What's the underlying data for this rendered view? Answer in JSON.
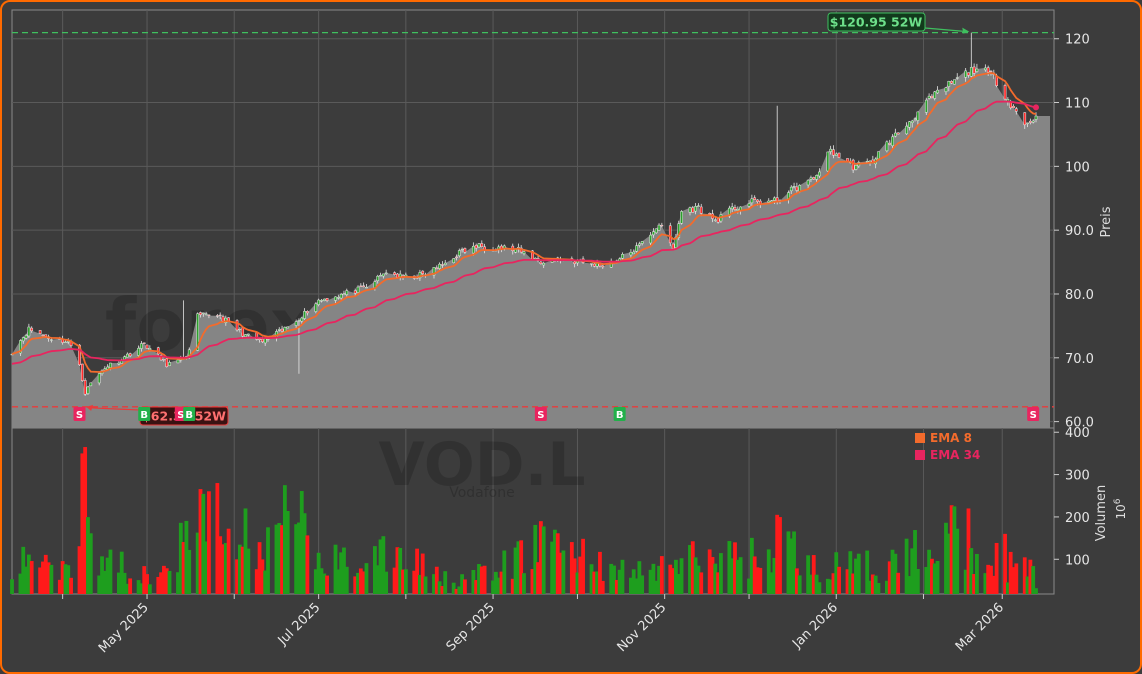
{
  "watermark": {
    "main": "forexsignale.trade",
    "symbol": "VOD.L",
    "name": "Vodafone"
  },
  "colors": {
    "background": "#3c3c3c",
    "panel_border": "#ff6a00",
    "area_fill": "#858585",
    "candle_up": "#2ca02c",
    "candle_down": "#ff2b2b",
    "ema8": "#f36b2c",
    "ema34": "#e8255f",
    "high_line": "#3fbf5f",
    "low_line": "#e83b3b",
    "vol_up": "#1e9e1e",
    "vol_down": "#ff1a1a",
    "signal_buy": "#22b04a",
    "signal_sell": "#e8255f"
  },
  "chart_data": {
    "type": "candlestick",
    "title": "",
    "ylabel": "Preis",
    "ylim": [
      59.0,
      124.5
    ],
    "yticks": [
      "60.0",
      "70.0",
      "80.0",
      "90.0",
      "100",
      "110",
      "120"
    ],
    "ytick_values": [
      60,
      70,
      80,
      90,
      100,
      110,
      120
    ],
    "x_start": "2025-03-14",
    "x_end": "2026-03-13",
    "xticks": [
      "May 2025",
      "Jul 2025",
      "Sep 2025",
      "Nov 2025",
      "Jan 2026",
      "Mar 2026"
    ],
    "xtick_dates": [
      "2025-05-01",
      "2025-07-01",
      "2025-09-01",
      "2025-11-01",
      "2026-01-01",
      "2026-03-01"
    ],
    "minor_tick_dates": [
      "2025-04-01",
      "2025-06-01",
      "2025-08-01",
      "2025-10-01",
      "2025-12-01",
      "2026-02-01"
    ],
    "close_anchors": [
      [
        "2025-03-14",
        71.0
      ],
      [
        "2025-03-20",
        74.5
      ],
      [
        "2025-03-27",
        73.2
      ],
      [
        "2025-04-03",
        72.5
      ],
      [
        "2025-04-07",
        69.0
      ],
      [
        "2025-04-09",
        64.5
      ],
      [
        "2025-04-11",
        66.0
      ],
      [
        "2025-04-16",
        68.5
      ],
      [
        "2025-04-22",
        69.8
      ],
      [
        "2025-04-30",
        72.2
      ],
      [
        "2025-05-08",
        69.0
      ],
      [
        "2025-05-13",
        69.5
      ],
      [
        "2025-05-16",
        71.0
      ],
      [
        "2025-05-19",
        76.5
      ],
      [
        "2025-05-26",
        76.8
      ],
      [
        "2025-06-05",
        73.5
      ],
      [
        "2025-06-11",
        72.5
      ],
      [
        "2025-06-19",
        74.5
      ],
      [
        "2025-06-26",
        77.0
      ],
      [
        "2025-07-01",
        79.0
      ],
      [
        "2025-07-10",
        80.0
      ],
      [
        "2025-07-18",
        81.0
      ],
      [
        "2025-07-25",
        83.5
      ],
      [
        "2025-07-31",
        82.5
      ],
      [
        "2025-08-07",
        83.0
      ],
      [
        "2025-08-14",
        84.5
      ],
      [
        "2025-08-20",
        86.5
      ],
      [
        "2025-08-27",
        87.5
      ],
      [
        "2025-09-04",
        87.3
      ],
      [
        "2025-09-10",
        86.8
      ],
      [
        "2025-09-18",
        85.0
      ],
      [
        "2025-09-25",
        85.5
      ],
      [
        "2025-10-02",
        85.0
      ],
      [
        "2025-10-09",
        84.5
      ],
      [
        "2025-10-16",
        85.5
      ],
      [
        "2025-10-23",
        87.5
      ],
      [
        "2025-10-30",
        91.0
      ],
      [
        "2025-11-04",
        87.0
      ],
      [
        "2025-11-07",
        93.0
      ],
      [
        "2025-11-13",
        93.5
      ],
      [
        "2025-11-19",
        91.5
      ],
      [
        "2025-11-26",
        93.5
      ],
      [
        "2025-12-03",
        94.5
      ],
      [
        "2025-12-10",
        94.5
      ],
      [
        "2025-12-17",
        96.5
      ],
      [
        "2025-12-24",
        98.0
      ],
      [
        "2025-12-30",
        102.5
      ],
      [
        "2026-01-07",
        100.0
      ],
      [
        "2026-01-13",
        100.5
      ],
      [
        "2026-01-19",
        103.5
      ],
      [
        "2026-01-26",
        106.5
      ],
      [
        "2026-02-02",
        110.0
      ],
      [
        "2026-02-09",
        112.5
      ],
      [
        "2026-02-16",
        114.5
      ],
      [
        "2026-02-20",
        115.5
      ],
      [
        "2026-02-26",
        114.0
      ],
      [
        "2026-03-03",
        110.5
      ],
      [
        "2026-03-06",
        108.5
      ],
      [
        "2026-03-09",
        106.5
      ],
      [
        "2026-03-12",
        107.5
      ]
    ],
    "spikes": [
      [
        "2025-05-14",
        79.0,
        "high"
      ],
      [
        "2025-06-24",
        67.5,
        "low"
      ],
      [
        "2025-12-11",
        109.5,
        "high"
      ],
      [
        "2026-02-18",
        120.95,
        "high"
      ]
    ],
    "high_52w": {
      "label": "$120.95 52W",
      "value": 120.95,
      "date": "2026-02-18"
    },
    "low_52w": {
      "label": "$62.32 52W",
      "value": 62.32,
      "date": "2025-04-09"
    },
    "series": [
      {
        "name": "EMA 8",
        "period": 8
      },
      {
        "name": "EMA 34",
        "period": 34
      }
    ],
    "signals": [
      {
        "type": "S",
        "date": "2025-04-07"
      },
      {
        "type": "B",
        "date": "2025-04-30"
      },
      {
        "type": "S",
        "date": "2025-05-13"
      },
      {
        "type": "B",
        "date": "2025-05-16"
      },
      {
        "type": "S",
        "date": "2025-09-18"
      },
      {
        "type": "B",
        "date": "2025-10-16"
      },
      {
        "type": "S",
        "date": "2026-03-12"
      }
    ],
    "volume": {
      "ylabel": "Volumen",
      "unit": "10^6",
      "ylim": [
        18,
        410
      ],
      "yticks": [
        "100",
        "200",
        "300",
        "400"
      ],
      "ytick_values": [
        100,
        200,
        300,
        400
      ],
      "anchors": [
        [
          "2025-03-14",
          80
        ],
        [
          "2025-03-24",
          120
        ],
        [
          "2025-04-03",
          90
        ],
        [
          "2025-04-07",
          180
        ],
        [
          "2025-04-08",
          360
        ],
        [
          "2025-04-09",
          370
        ],
        [
          "2025-04-10",
          220
        ],
        [
          "2025-04-14",
          120
        ],
        [
          "2025-04-28",
          70
        ],
        [
          "2025-05-15",
          150
        ],
        [
          "2025-05-21",
          230
        ],
        [
          "2025-06-04",
          110
        ],
        [
          "2025-06-20",
          160
        ],
        [
          "2025-06-23",
          270
        ],
        [
          "2025-06-30",
          100
        ],
        [
          "2025-07-31",
          120
        ],
        [
          "2025-08-18",
          60
        ],
        [
          "2025-09-01",
          70
        ],
        [
          "2025-09-19",
          160
        ],
        [
          "2025-10-20",
          70
        ],
        [
          "2025-11-10",
          110
        ],
        [
          "2025-12-10",
          120
        ],
        [
          "2025-12-12",
          180
        ],
        [
          "2025-12-22",
          90
        ],
        [
          "2026-01-20",
          90
        ],
        [
          "2026-02-13",
          190
        ],
        [
          "2026-02-18",
          130
        ],
        [
          "2026-03-13",
          70
        ]
      ],
      "spikes": [
        [
          "2025-04-08",
          350
        ],
        [
          "2025-04-09",
          365
        ],
        [
          "2025-05-26",
          280
        ],
        [
          "2025-06-05",
          220
        ],
        [
          "2025-06-19",
          275
        ],
        [
          "2025-09-18",
          190
        ],
        [
          "2025-11-26",
          140
        ],
        [
          "2025-12-11",
          205
        ],
        [
          "2026-02-17",
          220
        ],
        [
          "2026-03-02",
          160
        ]
      ]
    }
  },
  "legend": {
    "items": [
      {
        "label": "EMA 8",
        "color": "#f36b2c"
      },
      {
        "label": "EMA 34",
        "color": "#e8255f"
      }
    ]
  }
}
